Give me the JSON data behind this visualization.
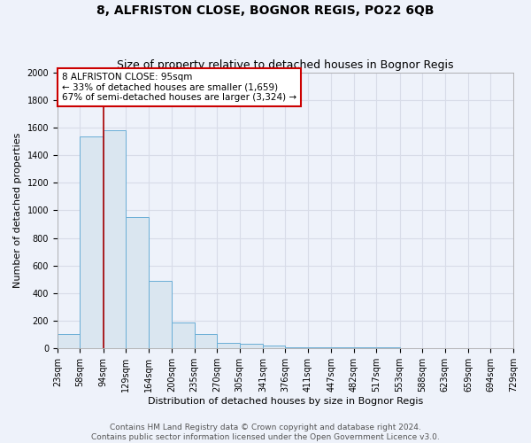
{
  "title": "8, ALFRISTON CLOSE, BOGNOR REGIS, PO22 6QB",
  "subtitle": "Size of property relative to detached houses in Bognor Regis",
  "xlabel": "Distribution of detached houses by size in Bognor Regis",
  "ylabel": "Number of detached properties",
  "bin_edges": [
    23,
    58,
    94,
    129,
    164,
    200,
    235,
    270,
    305,
    341,
    376,
    411,
    447,
    482,
    517,
    553,
    588,
    623,
    659,
    694,
    729
  ],
  "bar_heights": [
    100,
    1540,
    1580,
    950,
    490,
    185,
    100,
    35,
    30,
    20,
    5,
    5,
    5,
    3,
    3,
    2,
    2,
    1,
    1,
    1
  ],
  "bar_color": "#dae6f0",
  "bar_edge_color": "#6aaed6",
  "property_size": 95,
  "red_line_color": "#aa0000",
  "annotation_line1": "8 ALFRISTON CLOSE: 95sqm",
  "annotation_line2": "← 33% of detached houses are smaller (1,659)",
  "annotation_line3": "67% of semi-detached houses are larger (3,324) →",
  "annotation_box_color": "#ffffff",
  "annotation_box_edge": "#cc0000",
  "ylim": [
    0,
    2000
  ],
  "yticks": [
    0,
    200,
    400,
    600,
    800,
    1000,
    1200,
    1400,
    1600,
    1800,
    2000
  ],
  "background_color": "#eef2fa",
  "grid_color": "#d8dce8",
  "footer_text": "Contains HM Land Registry data © Crown copyright and database right 2024.\nContains public sector information licensed under the Open Government Licence v3.0.",
  "title_fontsize": 10,
  "subtitle_fontsize": 9,
  "xlabel_fontsize": 8,
  "ylabel_fontsize": 8,
  "tick_fontsize": 7,
  "annotation_fontsize": 7.5,
  "footer_fontsize": 6.5
}
